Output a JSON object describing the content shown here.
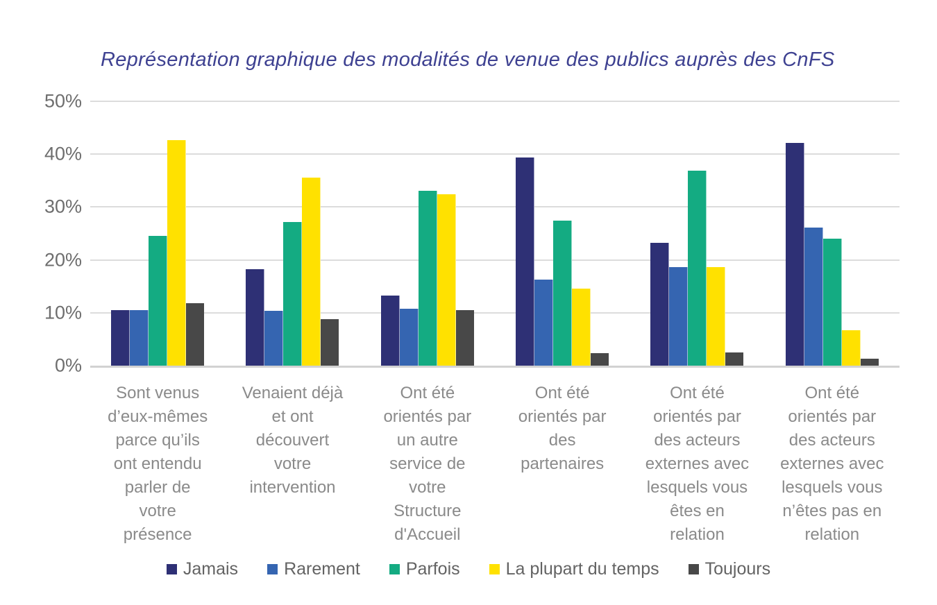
{
  "chart_data": {
    "type": "bar",
    "title": "Représentation graphique des modalités de venue des publics auprès des CnFS",
    "categories": [
      "Sont venus\nd’eux-mêmes\nparce qu’ils\nont entendu\nparler de\nvotre\nprésence",
      "Venaient déjà\net ont\ndécouvert\nvotre\nintervention",
      "Ont été\norientés par\nun autre\nservice de\nvotre\nStructure\nd'Accueil",
      "Ont été\norientés par\ndes\npartenaires",
      "Ont été\norientés par\ndes acteurs\nexternes avec\nlesquels vous\nêtes en\nrelation",
      "Ont été\norientés par\ndes acteurs\nexternes avec\nlesquels vous\nn’êtes pas en\nrelation"
    ],
    "series": [
      {
        "name": "Jamais",
        "color": "#2E3075",
        "values": [
          10.5,
          18.2,
          13.2,
          39.4,
          23.2,
          42.1
        ]
      },
      {
        "name": "Rarement",
        "color": "#3565B1",
        "values": [
          10.5,
          10.4,
          10.7,
          16.3,
          18.7,
          26.1
        ]
      },
      {
        "name": "Parfois",
        "color": "#14AB82",
        "values": [
          24.6,
          27.2,
          33.1,
          27.4,
          36.9,
          24.0
        ]
      },
      {
        "name": "La plupart du temps",
        "color": "#FFE100",
        "values": [
          42.6,
          35.6,
          32.4,
          14.6,
          18.7,
          6.7
        ]
      },
      {
        "name": "Toujours",
        "color": "#484848",
        "values": [
          11.8,
          8.8,
          10.5,
          2.4,
          2.5,
          1.3
        ]
      }
    ],
    "ylim": [
      0,
      50
    ],
    "yticks": [
      "0%",
      "10%",
      "20%",
      "30%",
      "40%",
      "50%"
    ],
    "grid": true,
    "legend_position": "bottom"
  },
  "style": {
    "title_color": "#3E4191",
    "axis_label_color": "#6E6E6E",
    "category_label_color": "#8A8A8A",
    "legend_label_color": "#636363",
    "gridline_color": "#DCDCDC",
    "baseline_color": "#D2D2D2",
    "background": "#FFFFFF"
  }
}
